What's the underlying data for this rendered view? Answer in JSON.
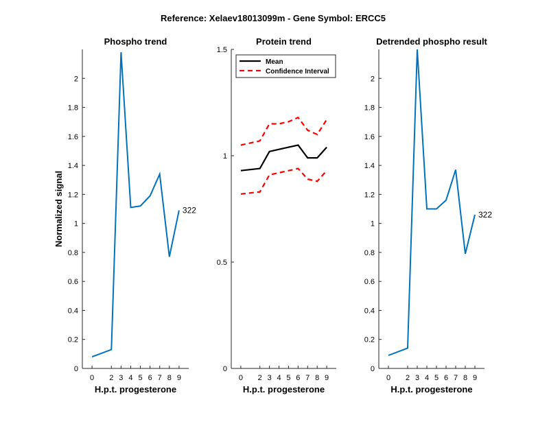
{
  "figure": {
    "suptitle": "Reference:  Xelaev18013099m - Gene Symbol:  ERCC5",
    "colors": {
      "phospho": "#0072bd",
      "mean": "#000000",
      "ci": "#ff0000"
    }
  },
  "chart_data": [
    {
      "type": "line",
      "title": "Phospho trend",
      "xlabel": "H.p.t. progesterone",
      "ylabel": "Normalized signal",
      "xticks": [
        0,
        2,
        3,
        4,
        5,
        6,
        7,
        8,
        9
      ],
      "yticks": [
        0,
        0.2,
        0.4,
        0.6,
        0.8,
        1,
        1.2,
        1.4,
        1.6,
        1.8,
        2
      ],
      "ytick_labels": [
        "0",
        "0.2",
        "0.4",
        "0.6",
        "0.8",
        "1",
        "1.2",
        "1.4",
        "1.6",
        "1.8",
        "2"
      ],
      "ylim": [
        0,
        2.2
      ],
      "series": [
        {
          "x": [
            0,
            2,
            3,
            4,
            5,
            6,
            7,
            8,
            9
          ],
          "values": [
            0.08,
            0.13,
            2.18,
            1.11,
            1.12,
            1.19,
            1.34,
            0.77,
            1.09
          ]
        }
      ],
      "annotation": {
        "text": "322",
        "x": 9,
        "y": 1.09
      }
    },
    {
      "type": "line",
      "title": "Protein trend",
      "xlabel": "H.p.t. progesterone",
      "ylabel": "",
      "xticks": [
        0,
        2,
        3,
        4,
        5,
        6,
        7,
        8,
        9
      ],
      "yticks": [
        0,
        0.5,
        1,
        1.5
      ],
      "ytick_labels": [
        "0",
        "0.5",
        "1",
        "1.5"
      ],
      "ylim": [
        0,
        1.5
      ],
      "legend": {
        "placement": "top-left",
        "entries": [
          "Mean",
          "Confidence Interval"
        ]
      },
      "series": [
        {
          "name": "Mean",
          "style": "solid",
          "x": [
            0,
            2,
            3,
            4,
            5,
            6,
            7,
            8,
            9
          ],
          "values": [
            0.93,
            0.94,
            1.02,
            1.03,
            1.04,
            1.05,
            0.99,
            0.99,
            1.04
          ]
        },
        {
          "name": "Confidence Interval",
          "style": "dashed",
          "x": [
            0,
            2,
            3,
            4,
            5,
            6,
            7,
            8,
            9
          ],
          "values": [
            1.05,
            1.07,
            1.15,
            1.15,
            1.16,
            1.18,
            1.12,
            1.1,
            1.17
          ]
        },
        {
          "name": "Confidence Interval",
          "style": "dashed",
          "x": [
            0,
            2,
            3,
            4,
            5,
            6,
            7,
            8,
            9
          ],
          "values": [
            0.82,
            0.83,
            0.91,
            0.92,
            0.93,
            0.94,
            0.89,
            0.88,
            0.93
          ]
        }
      ]
    },
    {
      "type": "line",
      "title": "Detrended phospho result",
      "xlabel": "H.p.t. progesterone",
      "ylabel": "",
      "xticks": [
        0,
        2,
        3,
        4,
        5,
        6,
        7,
        8,
        9
      ],
      "yticks": [
        0,
        0.2,
        0.4,
        0.6,
        0.8,
        1,
        1.2,
        1.4,
        1.6,
        1.8,
        2
      ],
      "ytick_labels": [
        "0",
        "0.2",
        "0.4",
        "0.6",
        "0.8",
        "1",
        "1.2",
        "1.4",
        "1.6",
        "1.8",
        "2"
      ],
      "ylim": [
        0,
        2.2
      ],
      "series": [
        {
          "x": [
            0,
            2,
            3,
            4,
            5,
            6,
            7,
            8,
            9
          ],
          "values": [
            0.09,
            0.14,
            2.2,
            1.1,
            1.1,
            1.16,
            1.37,
            0.79,
            1.06
          ]
        }
      ],
      "annotation": {
        "text": "322",
        "x": 9,
        "y": 1.06
      }
    }
  ]
}
